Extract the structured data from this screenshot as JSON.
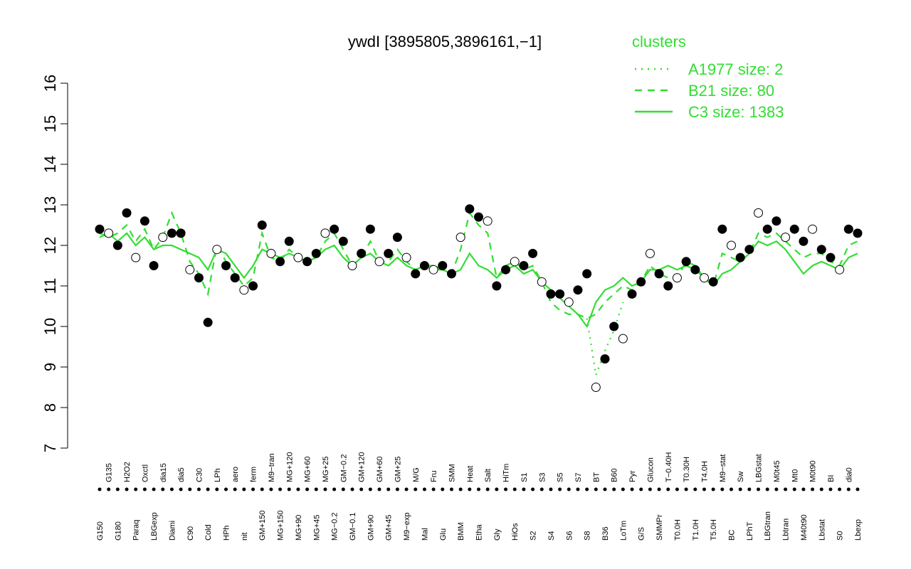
{
  "chart_data": {
    "type": "line",
    "title": "ywdI [3895805,3896161,−1]",
    "legend_title": "clusters",
    "legend": "top-right",
    "categories": [
      "G150",
      "G135",
      "G180",
      "H2O2",
      "Paraq",
      "Oxctl",
      "LBGexp",
      "dia15",
      "Diami",
      "dia5",
      "C90",
      "C30",
      "Cold",
      "LPh",
      "HPh",
      "aero",
      "nit",
      "ferm",
      "GM+150",
      "M9−tran",
      "MG+150",
      "MG+120",
      "MG+90",
      "MG+60",
      "MG+45",
      "MG+25",
      "MG−0.2",
      "GM−0.2",
      "GM−0.1",
      "GM+120",
      "GM+90",
      "GM+60",
      "GM+45",
      "GM+25",
      "M9−exp",
      "M/G",
      "Mal",
      "Fru",
      "Glu",
      "SMM",
      "BMM",
      "Heat",
      "Etha",
      "Salt",
      "Gly",
      "HiTm",
      "HiOs",
      "S1",
      "S2",
      "S3",
      "S4",
      "S5",
      "S6",
      "S7",
      "S8",
      "BT",
      "B36",
      "B60",
      "LoTm",
      "Pyr",
      "G/S",
      "Glucon",
      "SMMPr",
      "T−0.40H",
      "T0.0H",
      "T0.30H",
      "T1.0H",
      "T4.0H",
      "T5.0H",
      "M9−stat",
      "BC",
      "Sw",
      "LPhT",
      "LBGstat",
      "LBGtran",
      "M0t45",
      "Lbtran",
      "Mt0",
      "M40t90",
      "M0t90",
      "Lbstat",
      "BI",
      "S0",
      "dia0",
      "Lbexp"
    ],
    "values": [
      12.4,
      12.3,
      12.0,
      12.8,
      11.7,
      12.6,
      11.5,
      12.2,
      12.3,
      12.3,
      11.4,
      11.2,
      10.1,
      11.9,
      11.5,
      11.2,
      10.9,
      11.0,
      12.5,
      11.8,
      11.6,
      12.1,
      11.7,
      11.6,
      11.8,
      12.3,
      12.4,
      12.1,
      11.5,
      11.8,
      12.4,
      11.6,
      11.8,
      12.2,
      11.7,
      11.3,
      11.5,
      11.4,
      11.5,
      11.3,
      12.2,
      12.9,
      12.7,
      12.6,
      11.0,
      11.4,
      11.6,
      11.5,
      11.8,
      11.1,
      10.8,
      10.8,
      10.6,
      10.9,
      11.3,
      8.5,
      9.2,
      10.0,
      9.7,
      10.8,
      11.1,
      11.8,
      11.3,
      11.0,
      11.2,
      11.6,
      11.4,
      11.2,
      11.1,
      12.4,
      12.0,
      11.7,
      11.9,
      12.8,
      12.4,
      12.6,
      12.2,
      12.4,
      12.1,
      12.4,
      11.9,
      11.7,
      11.4,
      12.4,
      12.3
    ],
    "series": [
      {
        "name": "A1977 size: 2",
        "color": "#33dd33",
        "style": "dotted",
        "values": [
          null,
          null,
          null,
          null,
          null,
          null,
          null,
          null,
          null,
          null,
          null,
          null,
          null,
          null,
          null,
          null,
          null,
          null,
          null,
          null,
          null,
          null,
          null,
          null,
          null,
          null,
          null,
          null,
          null,
          null,
          null,
          null,
          null,
          null,
          null,
          null,
          null,
          null,
          null,
          null,
          null,
          null,
          null,
          null,
          null,
          null,
          null,
          null,
          null,
          null,
          null,
          null,
          null,
          null,
          10.2,
          8.8,
          9.4,
          9.9,
          10.6,
          null,
          null,
          null,
          null,
          null,
          null,
          null,
          null,
          null,
          null,
          null,
          null,
          null,
          null,
          null,
          null,
          null,
          null,
          null,
          null,
          null,
          null,
          null,
          null,
          null,
          null
        ]
      },
      {
        "name": "B21 size: 80",
        "color": "#33dd33",
        "style": "dashed",
        "values": [
          12.3,
          12.2,
          12.3,
          12.5,
          12.1,
          12.4,
          11.9,
          12.2,
          12.8,
          12.3,
          11.6,
          11.3,
          10.8,
          12.0,
          11.6,
          11.3,
          11.0,
          11.2,
          12.3,
          11.7,
          11.6,
          11.9,
          11.7,
          11.6,
          11.7,
          12.1,
          12.3,
          11.9,
          11.5,
          11.7,
          12.1,
          11.6,
          11.6,
          11.9,
          11.6,
          11.4,
          11.5,
          11.4,
          11.4,
          11.3,
          11.9,
          12.8,
          12.5,
          12.3,
          11.2,
          11.5,
          11.6,
          11.4,
          11.5,
          11.1,
          10.6,
          10.4,
          10.3,
          10.3,
          10.2,
          10.3,
          10.6,
          10.8,
          11.0,
          10.9,
          11.1,
          11.5,
          11.3,
          11.2,
          11.2,
          11.6,
          11.5,
          11.2,
          11.0,
          11.8,
          11.7,
          11.6,
          11.8,
          12.3,
          12.2,
          12.3,
          12.1,
          11.9,
          11.7,
          11.8,
          11.8,
          11.6,
          11.5,
          12.0,
          12.1
        ]
      },
      {
        "name": "C3 size: 1383",
        "color": "#33dd33",
        "style": "solid",
        "values": [
          12.2,
          12.3,
          12.1,
          12.3,
          12.0,
          12.2,
          11.9,
          12.0,
          12.0,
          11.9,
          11.8,
          11.7,
          11.4,
          11.9,
          11.8,
          11.5,
          11.2,
          11.5,
          11.9,
          11.8,
          11.7,
          11.8,
          11.7,
          11.6,
          11.7,
          11.9,
          12.0,
          11.7,
          11.5,
          11.7,
          11.8,
          11.6,
          11.5,
          11.7,
          11.5,
          11.4,
          11.5,
          11.5,
          11.4,
          11.3,
          11.4,
          11.8,
          11.5,
          11.4,
          11.2,
          11.4,
          11.5,
          11.3,
          11.4,
          11.1,
          10.9,
          10.7,
          10.5,
          10.3,
          10.0,
          10.6,
          10.9,
          11.0,
          11.2,
          11.0,
          11.1,
          11.4,
          11.4,
          11.5,
          11.4,
          11.5,
          11.4,
          11.2,
          11.0,
          11.3,
          11.4,
          11.6,
          11.8,
          12.1,
          12.0,
          12.1,
          11.9,
          11.6,
          11.3,
          11.5,
          11.6,
          11.5,
          11.4,
          11.7,
          11.8
        ]
      }
    ],
    "ylim": [
      7,
      16
    ],
    "yticks": [
      7,
      8,
      9,
      10,
      11,
      12,
      13,
      14,
      15,
      16
    ]
  }
}
